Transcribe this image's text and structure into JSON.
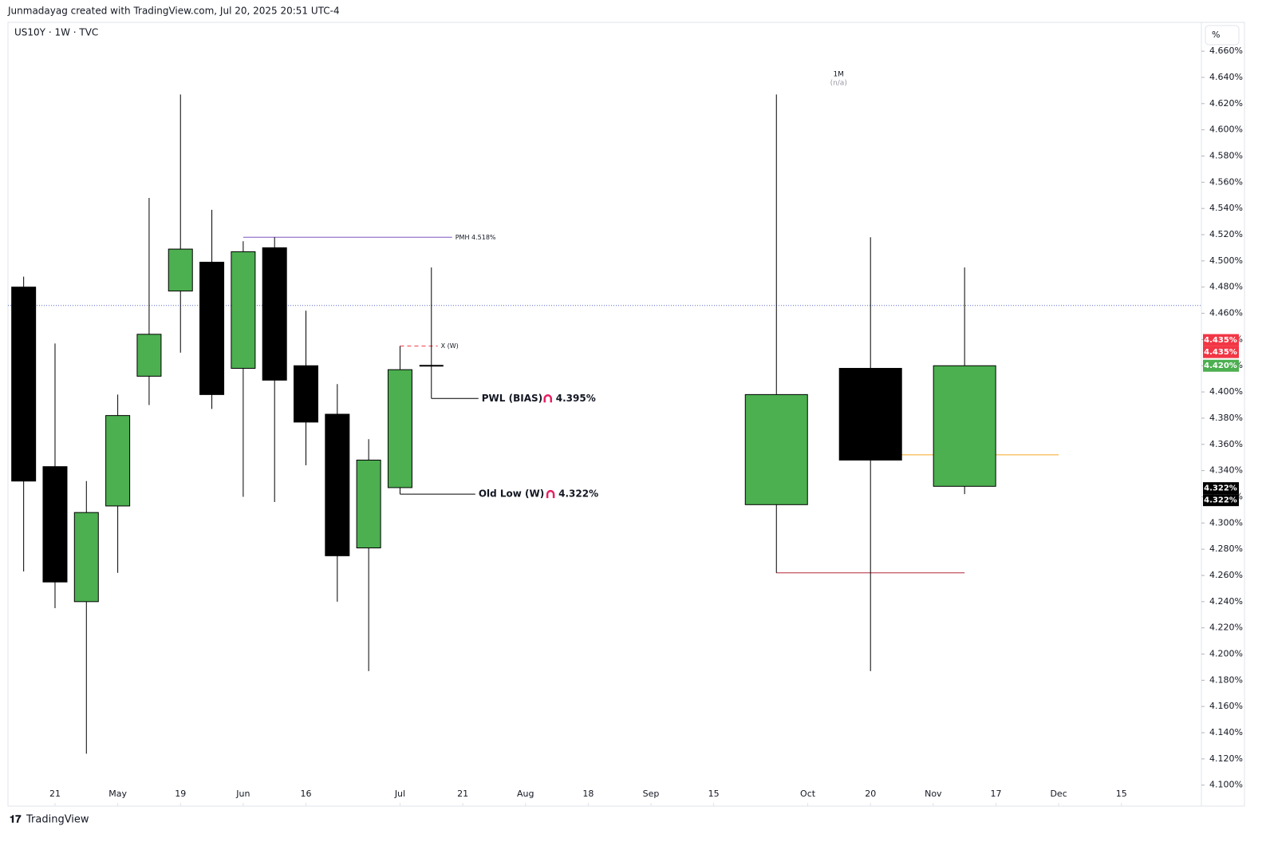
{
  "header": "Junmadayag created with TradingView.com, Jul 20, 2025 20:51 UTC-4",
  "footer": "TradingView",
  "chart_data": {
    "type": "candlestick",
    "title": "US10Y · 1W · TVC",
    "unit_button": "%",
    "ylim": [
      4.084,
      4.682
    ],
    "yticks": [
      {
        "value": 4.1,
        "label": "4.100%"
      },
      {
        "value": 4.12,
        "label": "4.120%"
      },
      {
        "value": 4.14,
        "label": "4.140%"
      },
      {
        "value": 4.16,
        "label": "4.160%"
      },
      {
        "value": 4.18,
        "label": "4.180%"
      },
      {
        "value": 4.2,
        "label": "4.200%"
      },
      {
        "value": 4.22,
        "label": "4.220%"
      },
      {
        "value": 4.24,
        "label": "4.240%"
      },
      {
        "value": 4.26,
        "label": "4.260%"
      },
      {
        "value": 4.28,
        "label": "4.280%"
      },
      {
        "value": 4.3,
        "label": "4.300%"
      },
      {
        "value": 4.32,
        "label": "4.320%"
      },
      {
        "value": 4.34,
        "label": "4.340%"
      },
      {
        "value": 4.36,
        "label": "4.360%"
      },
      {
        "value": 4.38,
        "label": "4.380%"
      },
      {
        "value": 4.4,
        "label": "4.400%"
      },
      {
        "value": 4.42,
        "label": "4.420%"
      },
      {
        "value": 4.44,
        "label": "4.440%"
      },
      {
        "value": 4.46,
        "label": "4.460%"
      },
      {
        "value": 4.48,
        "label": "4.480%"
      },
      {
        "value": 4.5,
        "label": "4.500%"
      },
      {
        "value": 4.52,
        "label": "4.520%"
      },
      {
        "value": 4.54,
        "label": "4.540%"
      },
      {
        "value": 4.56,
        "label": "4.560%"
      },
      {
        "value": 4.58,
        "label": "4.580%"
      },
      {
        "value": 4.6,
        "label": "4.600%"
      },
      {
        "value": 4.62,
        "label": "4.620%"
      },
      {
        "value": 4.64,
        "label": "4.640%"
      },
      {
        "value": 4.66,
        "label": "4.660%"
      }
    ],
    "xlim": [
      -0.5,
      37.55
    ],
    "xticks": [
      {
        "value": 1,
        "label": "21"
      },
      {
        "value": 3,
        "label": "May"
      },
      {
        "value": 5,
        "label": "19"
      },
      {
        "value": 7,
        "label": "Jun"
      },
      {
        "value": 9,
        "label": "16"
      },
      {
        "value": 12,
        "label": "Jul"
      },
      {
        "value": 14,
        "label": "21"
      },
      {
        "value": 16,
        "label": "Aug"
      },
      {
        "value": 18,
        "label": "18"
      },
      {
        "value": 20,
        "label": "Sep"
      },
      {
        "value": 22,
        "label": "15"
      },
      {
        "value": 25,
        "label": "Oct"
      },
      {
        "value": 27,
        "label": "20"
      },
      {
        "value": 29,
        "label": "Nov"
      },
      {
        "value": 31,
        "label": "17"
      },
      {
        "value": 33,
        "label": "Dec"
      },
      {
        "value": 35,
        "label": "15"
      }
    ],
    "up_color": "#4caf50",
    "down_color": "#000000",
    "series": [
      {
        "name": "1W",
        "x": [
          0,
          1,
          2,
          3,
          4,
          5,
          6,
          7,
          8,
          9,
          10,
          11,
          12,
          13
        ],
        "open": [
          4.48,
          4.343,
          4.24,
          4.313,
          4.412,
          4.477,
          4.499,
          4.418,
          4.51,
          4.42,
          4.383,
          4.281,
          4.327,
          4.42
        ],
        "high": [
          4.488,
          4.437,
          4.332,
          4.398,
          4.548,
          4.627,
          4.539,
          4.515,
          4.518,
          4.462,
          4.406,
          4.364,
          4.435,
          4.495
        ],
        "low": [
          4.263,
          4.235,
          4.124,
          4.262,
          4.39,
          4.43,
          4.387,
          4.32,
          4.316,
          4.344,
          4.24,
          4.187,
          4.322,
          4.395
        ],
        "close": [
          4.332,
          4.255,
          4.308,
          4.382,
          4.444,
          4.509,
          4.398,
          4.507,
          4.409,
          4.377,
          4.275,
          4.348,
          4.417,
          4.42
        ]
      },
      {
        "name": "1M",
        "subtitle": "(n/a)",
        "x": [
          24,
          27,
          30
        ],
        "open": [
          4.314,
          4.418,
          4.328
        ],
        "high": [
          4.627,
          4.518,
          4.495
        ],
        "low": [
          4.262,
          4.187,
          4.322
        ],
        "close": [
          4.398,
          4.348,
          4.42
        ]
      }
    ],
    "lines": [
      {
        "value": 4.466,
        "x1": -0.5,
        "x2": 37.55,
        "color": "#5b6cc9",
        "style": "dotted"
      },
      {
        "value": 4.518,
        "x1": 7,
        "x2": 13.66,
        "color": "#7e57c2",
        "style": "solid",
        "label": "PMH 4.518%"
      },
      {
        "value": 4.435,
        "x1": 12,
        "x2": 13.2,
        "color": "#f23645",
        "style": "dashed",
        "label": "X (W)"
      },
      {
        "value": 4.395,
        "x1": 13,
        "x2": 14.5,
        "color": "#000000",
        "style": "solid",
        "label": "PWL (BIAS)",
        "value_label": "4.395%"
      },
      {
        "value": 4.322,
        "x1": 12,
        "x2": 14.4,
        "color": "#000000",
        "style": "solid",
        "label": "Old Low (W)",
        "value_label": "4.322%"
      },
      {
        "value": 4.352,
        "x1": 28,
        "x2": 33,
        "color": "#f5a623",
        "style": "solid"
      },
      {
        "value": 4.262,
        "x1": 24,
        "x2": 30,
        "color": "#b2283a",
        "style": "solid"
      }
    ],
    "price_labels": [
      {
        "value": 4.435,
        "label": "4.435%",
        "color": "#f23645"
      },
      {
        "value": 4.435,
        "label": "4.435%",
        "color": "#f23645"
      },
      {
        "value": 4.42,
        "label": "4.420%",
        "color": "#4caf50"
      },
      {
        "value": 4.322,
        "label": "4.322%",
        "color": "#000000"
      },
      {
        "value": 4.322,
        "label": "4.322%",
        "color": "#000000"
      }
    ]
  }
}
